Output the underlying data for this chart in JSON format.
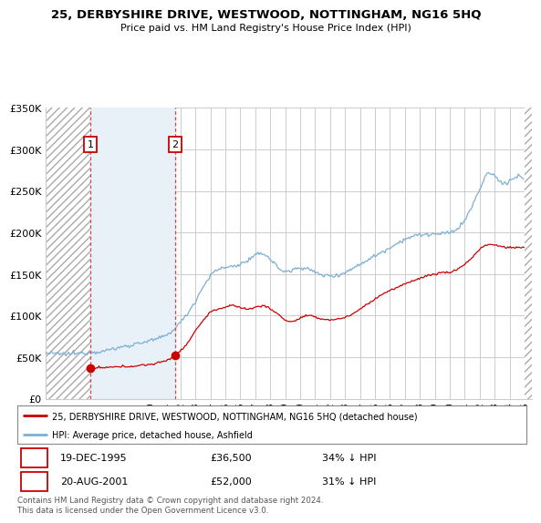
{
  "title": "25, DERBYSHIRE DRIVE, WESTWOOD, NOTTINGHAM, NG16 5HQ",
  "subtitle": "Price paid vs. HM Land Registry's House Price Index (HPI)",
  "legend_line1": "25, DERBYSHIRE DRIVE, WESTWOOD, NOTTINGHAM, NG16 5HQ (detached house)",
  "legend_line2": "HPI: Average price, detached house, Ashfield",
  "transaction1_date": "19-DEC-1995",
  "transaction1_price": "£36,500",
  "transaction1_hpi_text": "34% ↓ HPI",
  "transaction1_year": 1995.96,
  "transaction1_value": 36500,
  "transaction2_date": "20-AUG-2001",
  "transaction2_price": "£52,000",
  "transaction2_hpi_text": "31% ↓ HPI",
  "transaction2_year": 2001.63,
  "transaction2_value": 52000,
  "footer": "Contains HM Land Registry data © Crown copyright and database right 2024.\nThis data is licensed under the Open Government Licence v3.0.",
  "ylim": [
    0,
    350000
  ],
  "xlim_start": 1993.0,
  "xlim_end": 2025.5,
  "hatch_end_year": 1995.96,
  "hatch_start_year2": 2025.0,
  "shade_between_transactions": true,
  "line_color_property": "#cc0000",
  "line_color_hpi": "#7bafd4",
  "dot_color": "#cc0000",
  "grid_color": "#cccccc",
  "shade_color": "#e8f0f8",
  "hatch_color": "#bbbbbb"
}
